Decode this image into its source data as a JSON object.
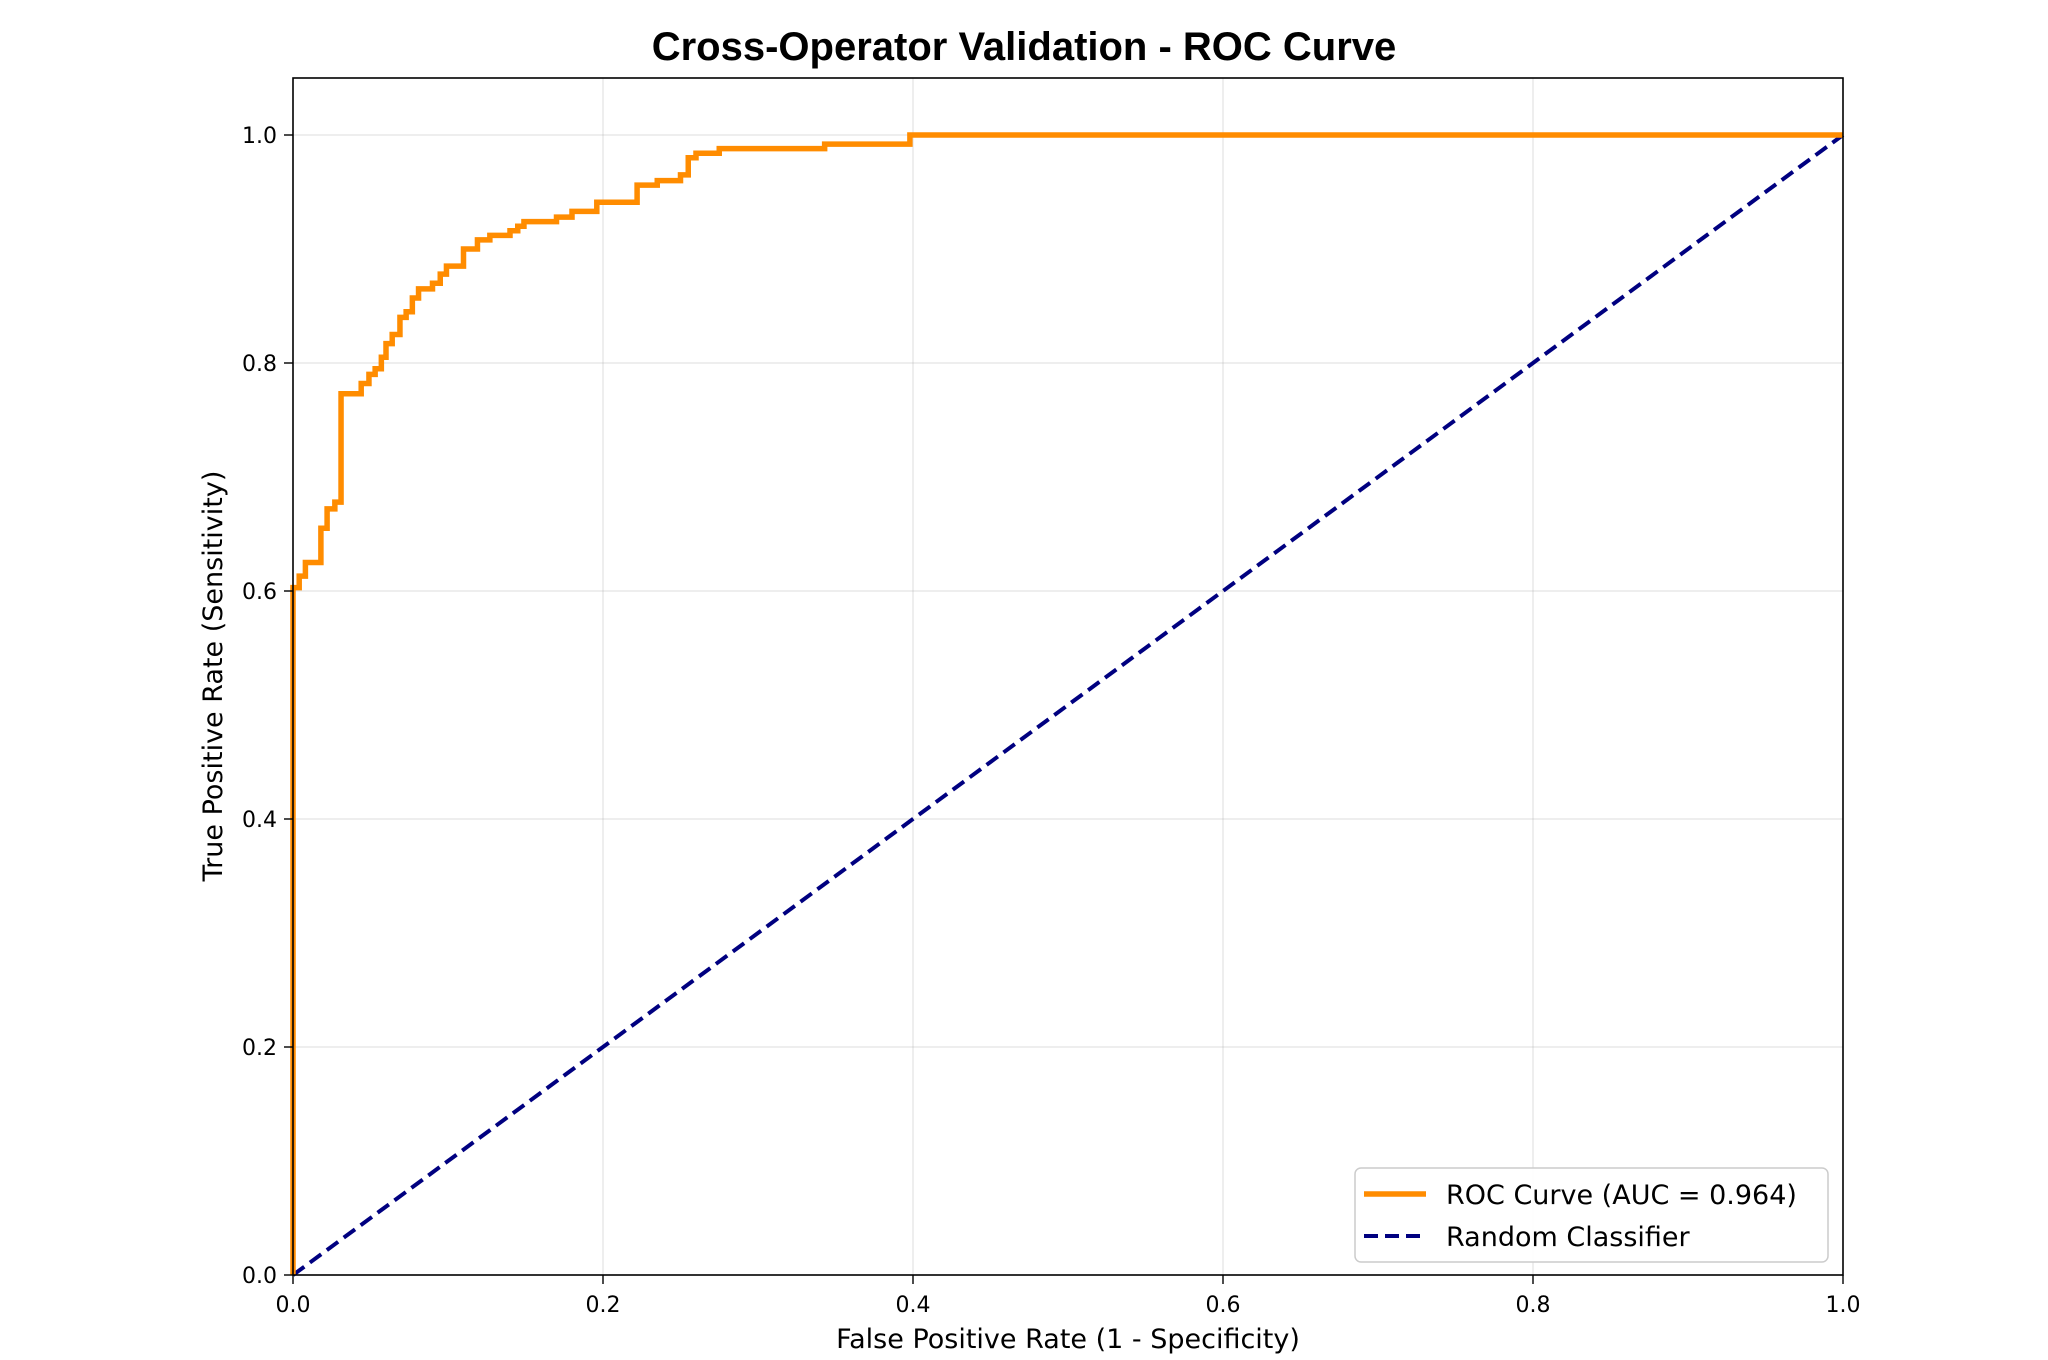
{
  "chart_data": {
    "type": "line",
    "title": "Cross-Operator Validation - ROC Curve",
    "xlabel": "False Positive Rate (1 - Specificity)",
    "ylabel": "True Positive Rate (Sensitivity)",
    "xlim": [
      0.0,
      1.0
    ],
    "ylim": [
      0.0,
      1.05
    ],
    "x_ticks": [
      "0.0",
      "0.2",
      "0.4",
      "0.6",
      "0.8",
      "1.0"
    ],
    "y_ticks": [
      "0.0",
      "0.2",
      "0.4",
      "0.6",
      "0.8",
      "1.0"
    ],
    "grid": true,
    "legend_position": "lower-right",
    "series": [
      {
        "name": "ROC Curve (AUC = 0.964)",
        "color": "#ff8c00",
        "style": "solid",
        "points": [
          [
            0.0,
            0.0
          ],
          [
            0.0,
            0.603
          ],
          [
            0.004,
            0.603
          ],
          [
            0.004,
            0.613
          ],
          [
            0.008,
            0.613
          ],
          [
            0.008,
            0.625
          ],
          [
            0.018,
            0.625
          ],
          [
            0.018,
            0.655
          ],
          [
            0.022,
            0.655
          ],
          [
            0.022,
            0.672
          ],
          [
            0.027,
            0.672
          ],
          [
            0.027,
            0.678
          ],
          [
            0.031,
            0.678
          ],
          [
            0.031,
            0.773
          ],
          [
            0.044,
            0.773
          ],
          [
            0.044,
            0.782
          ],
          [
            0.049,
            0.782
          ],
          [
            0.049,
            0.79
          ],
          [
            0.053,
            0.79
          ],
          [
            0.053,
            0.795
          ],
          [
            0.057,
            0.795
          ],
          [
            0.057,
            0.805
          ],
          [
            0.06,
            0.805
          ],
          [
            0.06,
            0.817
          ],
          [
            0.064,
            0.817
          ],
          [
            0.064,
            0.825
          ],
          [
            0.069,
            0.825
          ],
          [
            0.069,
            0.84
          ],
          [
            0.073,
            0.84
          ],
          [
            0.073,
            0.845
          ],
          [
            0.077,
            0.845
          ],
          [
            0.077,
            0.857
          ],
          [
            0.081,
            0.857
          ],
          [
            0.081,
            0.865
          ],
          [
            0.09,
            0.865
          ],
          [
            0.09,
            0.87
          ],
          [
            0.095,
            0.87
          ],
          [
            0.095,
            0.878
          ],
          [
            0.099,
            0.878
          ],
          [
            0.099,
            0.885
          ],
          [
            0.11,
            0.885
          ],
          [
            0.11,
            0.9
          ],
          [
            0.119,
            0.9
          ],
          [
            0.119,
            0.908
          ],
          [
            0.127,
            0.908
          ],
          [
            0.127,
            0.912
          ],
          [
            0.14,
            0.912
          ],
          [
            0.14,
            0.916
          ],
          [
            0.145,
            0.916
          ],
          [
            0.145,
            0.92
          ],
          [
            0.149,
            0.92
          ],
          [
            0.149,
            0.924
          ],
          [
            0.17,
            0.924
          ],
          [
            0.17,
            0.928
          ],
          [
            0.18,
            0.928
          ],
          [
            0.18,
            0.933
          ],
          [
            0.196,
            0.933
          ],
          [
            0.196,
            0.941
          ],
          [
            0.222,
            0.941
          ],
          [
            0.222,
            0.956
          ],
          [
            0.235,
            0.956
          ],
          [
            0.235,
            0.96
          ],
          [
            0.25,
            0.96
          ],
          [
            0.25,
            0.965
          ],
          [
            0.255,
            0.965
          ],
          [
            0.255,
            0.98
          ],
          [
            0.26,
            0.98
          ],
          [
            0.26,
            0.984
          ],
          [
            0.275,
            0.984
          ],
          [
            0.275,
            0.988
          ],
          [
            0.343,
            0.988
          ],
          [
            0.343,
            0.992
          ],
          [
            0.398,
            0.992
          ],
          [
            0.398,
            1.0
          ],
          [
            1.0,
            1.0
          ]
        ]
      },
      {
        "name": "Random Classifier",
        "color": "#000080",
        "style": "dashed",
        "points": [
          [
            0.0,
            0.0
          ],
          [
            1.0,
            1.0
          ]
        ]
      }
    ]
  }
}
